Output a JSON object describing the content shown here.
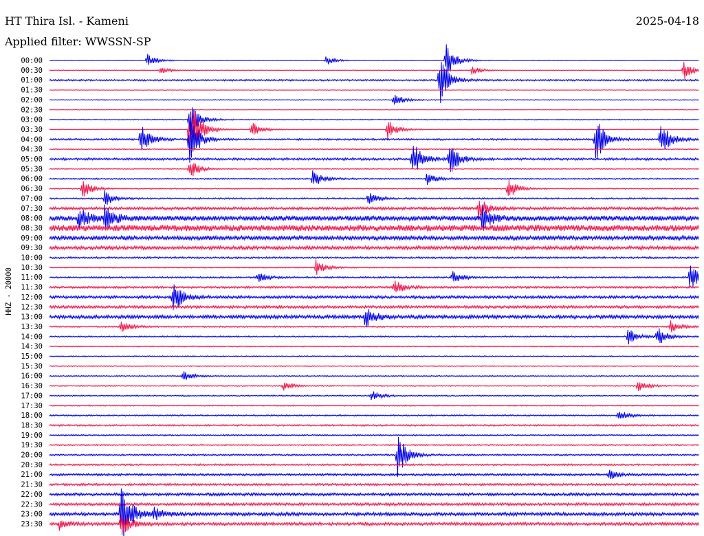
{
  "header": {
    "station": "HT Thira Isl. - Kameni",
    "date": "2025-04-18",
    "filter": "Applied filter: WWSSN-SP"
  },
  "chart_data": {
    "type": "line",
    "title": "HT Thira Isl. - Kameni",
    "subtitle": "Applied filter: WWSSN-SP",
    "ylabel": "HHZ - 20000",
    "row_times": [
      "00:00",
      "00:30",
      "01:00",
      "01:30",
      "02:00",
      "02:30",
      "03:00",
      "03:30",
      "04:00",
      "04:30",
      "05:00",
      "05:30",
      "06:00",
      "06:30",
      "07:00",
      "07:30",
      "08:00",
      "08:30",
      "09:00",
      "09:30",
      "10:00",
      "10:30",
      "11:00",
      "11:30",
      "12:00",
      "12:30",
      "13:00",
      "13:30",
      "14:00",
      "14:30",
      "15:00",
      "15:30",
      "16:00",
      "16:30",
      "17:00",
      "17:30",
      "18:00",
      "18:30",
      "19:00",
      "19:30",
      "20:00",
      "20:30",
      "21:00",
      "21:30",
      "22:00",
      "22:30",
      "23:00",
      "23:30"
    ],
    "colors": [
      "#0000e6",
      "#f0144a"
    ],
    "noise_level": [
      0.5,
      0.6,
      1.2,
      0.4,
      0.6,
      0.4,
      0.7,
      0.6,
      1.3,
      0.8,
      1.6,
      0.7,
      1.0,
      0.8,
      1.1,
      2.0,
      3.5,
      4.5,
      3.0,
      2.5,
      1.3,
      0.8,
      1.2,
      1.5,
      2.0,
      2.0,
      2.5,
      1.0,
      1.0,
      0.8,
      0.8,
      0.7,
      0.8,
      0.8,
      0.9,
      0.9,
      1.0,
      1.2,
      1.0,
      1.0,
      1.2,
      1.3,
      1.6,
      1.6,
      2.0,
      2.0,
      2.4,
      2.2
    ],
    "events": [
      {
        "row": 0,
        "x_frac": 0.15,
        "amp": 10
      },
      {
        "row": 0,
        "x_frac": 0.425,
        "amp": 7
      },
      {
        "row": 0,
        "x_frac": 0.61,
        "amp": 28
      },
      {
        "row": 1,
        "x_frac": 0.17,
        "amp": 5
      },
      {
        "row": 1,
        "x_frac": 0.65,
        "amp": 6
      },
      {
        "row": 1,
        "x_frac": 0.975,
        "amp": 16
      },
      {
        "row": 2,
        "x_frac": 0.6,
        "amp": 38
      },
      {
        "row": 4,
        "x_frac": 0.53,
        "amp": 10
      },
      {
        "row": 6,
        "x_frac": 0.215,
        "amp": 30
      },
      {
        "row": 7,
        "x_frac": 0.215,
        "amp": 60
      },
      {
        "row": 7,
        "x_frac": 0.31,
        "amp": 12
      },
      {
        "row": 7,
        "x_frac": 0.52,
        "amp": 16
      },
      {
        "row": 8,
        "x_frac": 0.14,
        "amp": 24
      },
      {
        "row": 8,
        "x_frac": 0.215,
        "amp": 40
      },
      {
        "row": 8,
        "x_frac": 0.84,
        "amp": 38
      },
      {
        "row": 8,
        "x_frac": 0.94,
        "amp": 28
      },
      {
        "row": 10,
        "x_frac": 0.558,
        "amp": 30
      },
      {
        "row": 10,
        "x_frac": 0.615,
        "amp": 26
      },
      {
        "row": 11,
        "x_frac": 0.215,
        "amp": 16
      },
      {
        "row": 12,
        "x_frac": 0.405,
        "amp": 14
      },
      {
        "row": 12,
        "x_frac": 0.58,
        "amp": 10
      },
      {
        "row": 13,
        "x_frac": 0.05,
        "amp": 14
      },
      {
        "row": 13,
        "x_frac": 0.705,
        "amp": 16
      },
      {
        "row": 14,
        "x_frac": 0.085,
        "amp": 12
      },
      {
        "row": 14,
        "x_frac": 0.49,
        "amp": 10
      },
      {
        "row": 15,
        "x_frac": 0.66,
        "amp": 16
      },
      {
        "row": 16,
        "x_frac": 0.045,
        "amp": 18
      },
      {
        "row": 16,
        "x_frac": 0.085,
        "amp": 20
      },
      {
        "row": 16,
        "x_frac": 0.665,
        "amp": 20
      },
      {
        "row": 21,
        "x_frac": 0.41,
        "amp": 12
      },
      {
        "row": 22,
        "x_frac": 0.32,
        "amp": 10
      },
      {
        "row": 22,
        "x_frac": 0.62,
        "amp": 10
      },
      {
        "row": 22,
        "x_frac": 0.985,
        "amp": 20
      },
      {
        "row": 23,
        "x_frac": 0.53,
        "amp": 12
      },
      {
        "row": 24,
        "x_frac": 0.19,
        "amp": 24
      },
      {
        "row": 26,
        "x_frac": 0.485,
        "amp": 18
      },
      {
        "row": 27,
        "x_frac": 0.11,
        "amp": 10
      },
      {
        "row": 27,
        "x_frac": 0.955,
        "amp": 10
      },
      {
        "row": 28,
        "x_frac": 0.89,
        "amp": 12
      },
      {
        "row": 28,
        "x_frac": 0.935,
        "amp": 14
      },
      {
        "row": 32,
        "x_frac": 0.205,
        "amp": 8
      },
      {
        "row": 33,
        "x_frac": 0.36,
        "amp": 8
      },
      {
        "row": 33,
        "x_frac": 0.905,
        "amp": 10
      },
      {
        "row": 34,
        "x_frac": 0.495,
        "amp": 8
      },
      {
        "row": 36,
        "x_frac": 0.875,
        "amp": 8
      },
      {
        "row": 40,
        "x_frac": 0.535,
        "amp": 34
      },
      {
        "row": 42,
        "x_frac": 0.86,
        "amp": 8
      },
      {
        "row": 46,
        "x_frac": 0.11,
        "amp": 50
      },
      {
        "row": 46,
        "x_frac": 0.16,
        "amp": 10
      },
      {
        "row": 47,
        "x_frac": 0.11,
        "amp": 20
      },
      {
        "row": 47,
        "x_frac": 0.015,
        "amp": 8
      }
    ]
  }
}
